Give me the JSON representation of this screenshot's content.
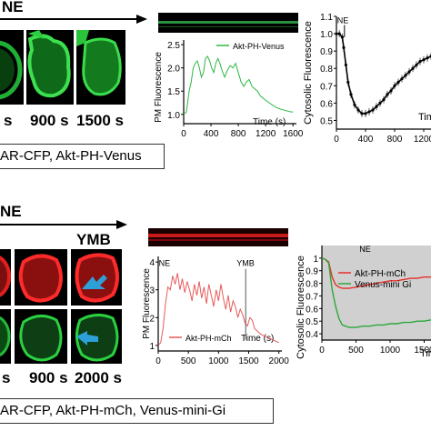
{
  "panel_a": {
    "treatment_label": "NE",
    "time_labels": [
      "s",
      "900 s",
      "1500 s"
    ],
    "caption": "AR-CFP, Akt-PH-Venus",
    "kymograph_color": "#2fa84a",
    "cell_color": "#1fbf35"
  },
  "panel_b": {
    "treatment_label": "NE",
    "inhibitor_label": "YMB",
    "time_labels": [
      "s",
      "900 s",
      "2000 s"
    ],
    "caption": "AR-CFP, Akt-PH-mCh, Venus-mini-Gi",
    "red_color": "#e0201f",
    "green_color": "#25b83a",
    "arrow_color": "#2ea0d8"
  },
  "chart_data": [
    {
      "id": "a-pm",
      "type": "line",
      "title": "",
      "xlabel": "Time (s)",
      "ylabel": "PM Fluorescence",
      "xlim": [
        0,
        1650
      ],
      "ylim": [
        0.8,
        2.6
      ],
      "xticks": [
        0,
        400,
        800,
        1200,
        1600
      ],
      "yticks": [
        1.0,
        1.5,
        2.0,
        2.5
      ],
      "legend": "top-right",
      "series": [
        {
          "name": "Akt-PH-Venus",
          "color": "#2fb843",
          "x": [
            0,
            40,
            80,
            110,
            140,
            170,
            200,
            230,
            260,
            290,
            320,
            350,
            380,
            410,
            440,
            470,
            500,
            530,
            560,
            600,
            640,
            680,
            720,
            760,
            800,
            840,
            880,
            920,
            960,
            1000,
            1040,
            1080,
            1120,
            1160,
            1200,
            1250,
            1300,
            1350,
            1400,
            1450,
            1500,
            1550,
            1600
          ],
          "y": [
            1.0,
            1.05,
            1.5,
            1.7,
            2.0,
            2.1,
            2.15,
            2.0,
            1.8,
            1.9,
            2.2,
            2.25,
            2.15,
            2.0,
            1.9,
            2.1,
            2.2,
            2.1,
            1.95,
            1.8,
            1.95,
            2.05,
            2.0,
            2.1,
            1.9,
            1.7,
            1.6,
            1.7,
            1.75,
            1.6,
            1.55,
            1.5,
            1.4,
            1.35,
            1.3,
            1.25,
            1.2,
            1.15,
            1.12,
            1.1,
            1.08,
            1.06,
            1.05
          ]
        }
      ]
    },
    {
      "id": "a-cyto",
      "type": "line",
      "title": "",
      "xlabel": "Tim",
      "ylabel": "Cytosolic Fluorescence",
      "xlim": [
        0,
        1300
      ],
      "ylim": [
        0.45,
        1.1
      ],
      "xticks": [
        0,
        400,
        800,
        1200
      ],
      "yticks": [
        0.5,
        0.6,
        0.7,
        0.8,
        0.9,
        1.0,
        1.1
      ],
      "annotations": [
        "NE"
      ],
      "series": [
        {
          "name": "",
          "color": "#000000",
          "x": [
            0,
            40,
            80,
            100,
            130,
            160,
            200,
            250,
            300,
            350,
            400,
            450,
            500,
            550,
            600,
            650,
            700,
            750,
            800,
            850,
            900,
            950,
            1000,
            1050,
            1100,
            1150,
            1200,
            1250,
            1300
          ],
          "y": [
            1.0,
            1.0,
            0.98,
            0.92,
            0.82,
            0.72,
            0.65,
            0.59,
            0.56,
            0.54,
            0.54,
            0.55,
            0.56,
            0.58,
            0.6,
            0.62,
            0.65,
            0.67,
            0.7,
            0.72,
            0.74,
            0.76,
            0.78,
            0.8,
            0.82,
            0.84,
            0.85,
            0.86,
            0.87
          ]
        }
      ]
    },
    {
      "id": "b-pm",
      "type": "line",
      "title": "",
      "xlabel": "Time (s)",
      "ylabel": "PM Fluorescence",
      "xlim": [
        0,
        2050
      ],
      "ylim": [
        0.8,
        4.2
      ],
      "xticks": [
        0,
        500,
        1000,
        1500,
        2000
      ],
      "xtick_labels": [
        "0",
        "500",
        "1000",
        "1500",
        "2000"
      ],
      "yticks": [
        1,
        2,
        3,
        4
      ],
      "annotations": [
        "NE",
        "YMB"
      ],
      "legend": "bottom-center",
      "series": [
        {
          "name": "Akt-PH-mCh",
          "color": "#e85a5a",
          "x": [
            0,
            40,
            80,
            120,
            160,
            200,
            240,
            280,
            320,
            360,
            400,
            440,
            480,
            520,
            560,
            600,
            640,
            680,
            720,
            760,
            800,
            840,
            880,
            920,
            960,
            1000,
            1040,
            1080,
            1120,
            1160,
            1200,
            1240,
            1280,
            1320,
            1360,
            1400,
            1440,
            1480,
            1520,
            1560,
            1600,
            1650,
            1700,
            1750,
            1800,
            1850,
            1900,
            1950,
            2000
          ],
          "y": [
            1.0,
            1.1,
            1.6,
            2.5,
            3.1,
            3.0,
            3.5,
            3.2,
            3.6,
            3.0,
            3.4,
            2.9,
            3.3,
            3.0,
            2.6,
            3.2,
            2.8,
            3.3,
            2.7,
            3.1,
            2.5,
            3.2,
            2.8,
            2.4,
            3.0,
            2.6,
            3.2,
            2.7,
            2.3,
            2.8,
            2.2,
            2.6,
            2.4,
            2.0,
            2.3,
            2.1,
            1.8,
            1.7,
            2.0,
            1.9,
            1.6,
            1.5,
            1.4,
            1.35,
            1.3,
            1.25,
            1.2,
            1.15,
            1.1
          ]
        }
      ]
    },
    {
      "id": "b-cyto",
      "type": "line",
      "title": "",
      "xlabel": "Tim",
      "ylabel": "Cytosolic Fluorescence",
      "xlim": [
        0,
        1600
      ],
      "ylim": [
        0.35,
        1.1
      ],
      "xticks": [
        0,
        500,
        1000,
        1500
      ],
      "yticks": [
        0.4,
        0.5,
        0.6,
        0.7,
        0.8,
        0.9,
        1.0
      ],
      "yticks_labels": [
        "0.4",
        "0.5",
        "0.6",
        "0.7",
        "0.8",
        "0.9",
        "1"
      ],
      "annotations": [
        "NE"
      ],
      "background": "#d0d0d0",
      "legend": "top-right",
      "series": [
        {
          "name": "Akt-PH-mCh",
          "color": "#e8302a",
          "x": [
            0,
            50,
            100,
            150,
            200,
            250,
            300,
            400,
            500,
            600,
            700,
            800,
            900,
            1000,
            1100,
            1200,
            1300,
            1400,
            1500,
            1600
          ],
          "y": [
            1.0,
            0.99,
            0.97,
            0.85,
            0.79,
            0.77,
            0.76,
            0.76,
            0.77,
            0.78,
            0.79,
            0.8,
            0.81,
            0.82,
            0.82,
            0.83,
            0.84,
            0.84,
            0.85,
            0.85
          ]
        },
        {
          "name": "Venus-mini Gi",
          "color": "#2aa83a",
          "x": [
            0,
            50,
            100,
            150,
            200,
            250,
            300,
            400,
            500,
            600,
            700,
            800,
            900,
            1000,
            1100,
            1200,
            1300,
            1400,
            1500,
            1600
          ],
          "y": [
            1.0,
            0.99,
            0.96,
            0.75,
            0.62,
            0.52,
            0.47,
            0.45,
            0.45,
            0.46,
            0.46,
            0.47,
            0.47,
            0.48,
            0.48,
            0.49,
            0.49,
            0.5,
            0.5,
            0.51
          ]
        }
      ]
    }
  ]
}
